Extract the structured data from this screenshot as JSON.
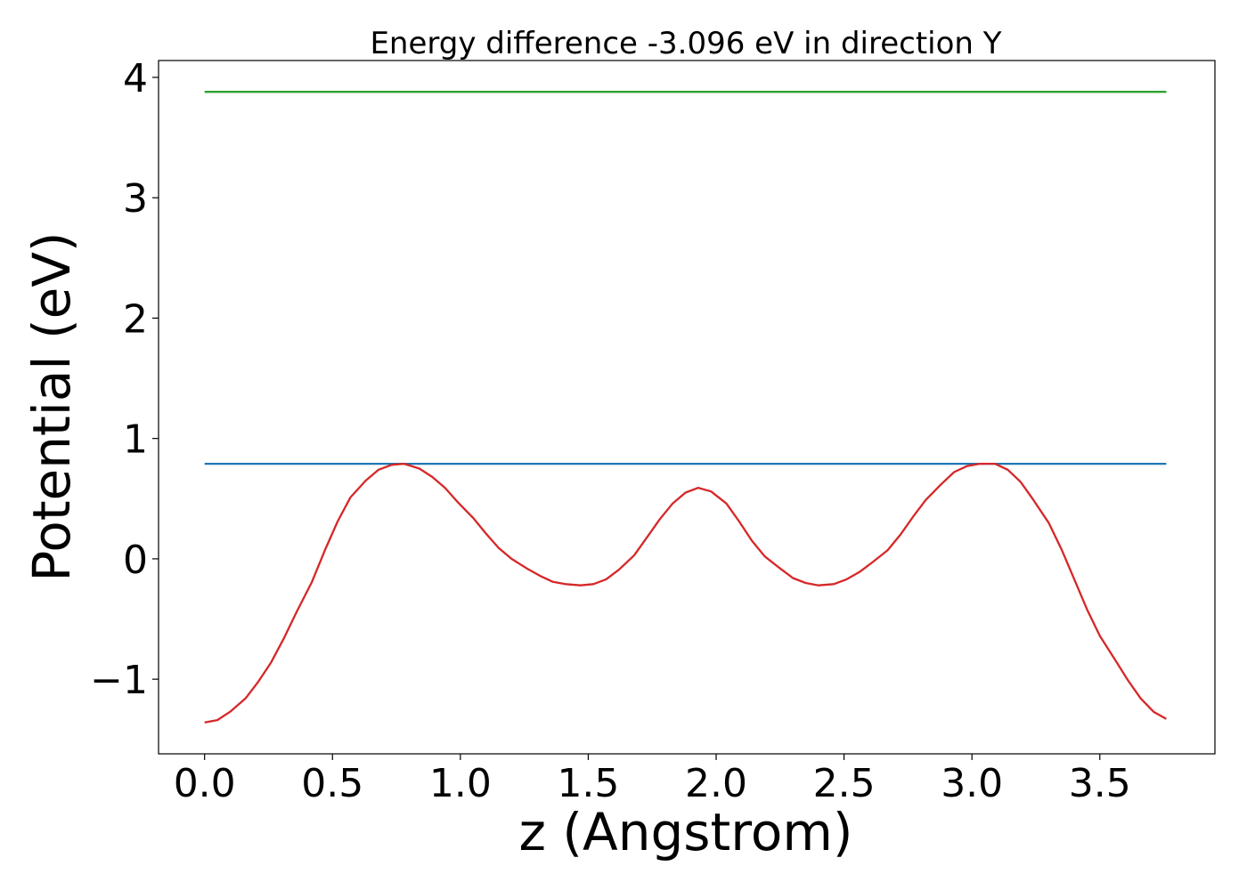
{
  "chart_data": {
    "type": "line",
    "title": "Energy difference -3.096 eV in direction Y",
    "xlabel": "z (Angstrom)",
    "ylabel": "Potential (eV)",
    "xlim": [
      -0.18,
      3.95
    ],
    "ylim": [
      -1.62,
      4.14
    ],
    "xticks": [
      0.0,
      0.5,
      1.0,
      1.5,
      2.0,
      2.5,
      3.0,
      3.5
    ],
    "xtick_labels": [
      "0.0",
      "0.5",
      "1.0",
      "1.5",
      "2.0",
      "2.5",
      "3.0",
      "3.5"
    ],
    "yticks": [
      -1,
      0,
      1,
      2,
      3,
      4
    ],
    "ytick_labels": [
      "−1",
      "0",
      "1",
      "2",
      "3",
      "4"
    ],
    "grid": false,
    "series": [
      {
        "color": "#2ca02c",
        "x": [
          0.0,
          3.76
        ],
        "y": [
          3.88,
          3.88
        ]
      },
      {
        "color": "#1f77b4",
        "x": [
          0.0,
          3.76
        ],
        "y": [
          0.79,
          0.79
        ]
      },
      {
        "color": "#d62728",
        "x": [
          0.0,
          0.05,
          0.1,
          0.16,
          0.21,
          0.26,
          0.31,
          0.36,
          0.42,
          0.47,
          0.52,
          0.57,
          0.63,
          0.68,
          0.73,
          0.78,
          0.84,
          0.89,
          0.94,
          0.99,
          1.05,
          1.1,
          1.15,
          1.2,
          1.26,
          1.31,
          1.36,
          1.41,
          1.47,
          1.52,
          1.57,
          1.62,
          1.68,
          1.73,
          1.78,
          1.83,
          1.88,
          1.93,
          1.98,
          2.04,
          2.09,
          2.14,
          2.19,
          2.25,
          2.3,
          2.35,
          2.4,
          2.46,
          2.51,
          2.56,
          2.61,
          2.67,
          2.72,
          2.77,
          2.82,
          2.88,
          2.93,
          2.98,
          3.03,
          3.09,
          3.14,
          3.19,
          3.24,
          3.3,
          3.35,
          3.4,
          3.45,
          3.5,
          3.56,
          3.61,
          3.66,
          3.71,
          3.76
        ],
        "y": [
          -1.36,
          -1.34,
          -1.27,
          -1.16,
          -1.02,
          -0.86,
          -0.66,
          -0.44,
          -0.19,
          0.07,
          0.31,
          0.51,
          0.65,
          0.74,
          0.78,
          0.79,
          0.75,
          0.68,
          0.59,
          0.47,
          0.34,
          0.21,
          0.09,
          0.0,
          -0.08,
          -0.14,
          -0.19,
          -0.21,
          -0.22,
          -0.21,
          -0.17,
          -0.09,
          0.03,
          0.18,
          0.33,
          0.46,
          0.55,
          0.59,
          0.56,
          0.46,
          0.31,
          0.15,
          0.02,
          -0.08,
          -0.16,
          -0.2,
          -0.22,
          -0.21,
          -0.17,
          -0.11,
          -0.03,
          0.07,
          0.2,
          0.35,
          0.49,
          0.62,
          0.72,
          0.77,
          0.79,
          0.79,
          0.74,
          0.64,
          0.49,
          0.3,
          0.08,
          -0.17,
          -0.42,
          -0.64,
          -0.84,
          -1.01,
          -1.16,
          -1.27,
          -1.33
        ]
      }
    ]
  }
}
